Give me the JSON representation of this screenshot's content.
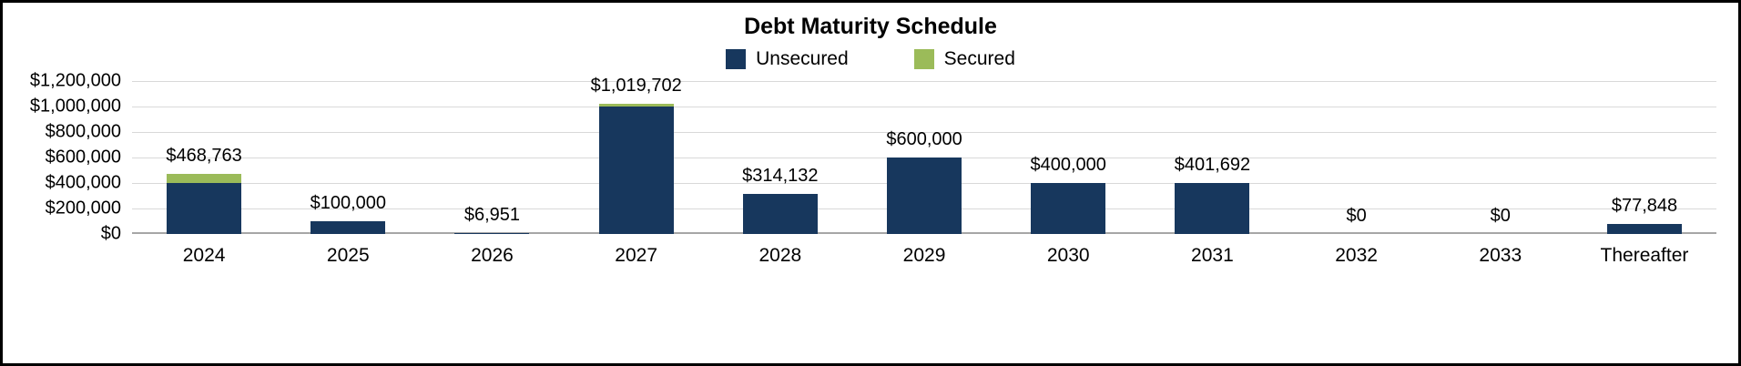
{
  "title": "Debt Maturity Schedule",
  "legend": [
    {
      "label": "Unsecured",
      "color": "#17375D"
    },
    {
      "label": "Secured",
      "color": "#9BBB59"
    }
  ],
  "colors": {
    "gridline": "#D9D9D9",
    "axis": "#A6A6A6",
    "text": "#000000"
  },
  "chart_data": {
    "type": "bar",
    "stacked": true,
    "title": "Debt Maturity Schedule",
    "xlabel": "",
    "ylabel": "",
    "grid": true,
    "legend_position": "top",
    "categories": [
      "2024",
      "2025",
      "2026",
      "2027",
      "2028",
      "2029",
      "2030",
      "2031",
      "2032",
      "2033",
      "Thereafter"
    ],
    "series": [
      {
        "name": "Unsecured",
        "color": "#17375D",
        "values": [
          400000,
          100000,
          6951,
          1000000,
          314132,
          600000,
          400000,
          401692,
          0,
          0,
          77848
        ]
      },
      {
        "name": "Secured",
        "color": "#9BBB59",
        "values": [
          68763,
          0,
          0,
          19702,
          0,
          0,
          0,
          0,
          0,
          0,
          0
        ]
      }
    ],
    "totals": [
      468763,
      100000,
      6951,
      1019702,
      314132,
      600000,
      400000,
      401692,
      0,
      0,
      77848
    ],
    "totals_labels": [
      "$468,763",
      "$100,000",
      "$6,951",
      "$1,019,702",
      "$314,132",
      "$600,000",
      "$400,000",
      "$401,692",
      "$0",
      "$0",
      "$77,848"
    ],
    "ylim": [
      0,
      1200000
    ],
    "ytick_values": [
      0,
      200000,
      400000,
      600000,
      800000,
      1000000,
      1200000
    ],
    "yticks": [
      "$0",
      "$200,000",
      "$400,000",
      "$600,000",
      "$800,000",
      "$1,000,000",
      "$1,200,000"
    ]
  }
}
